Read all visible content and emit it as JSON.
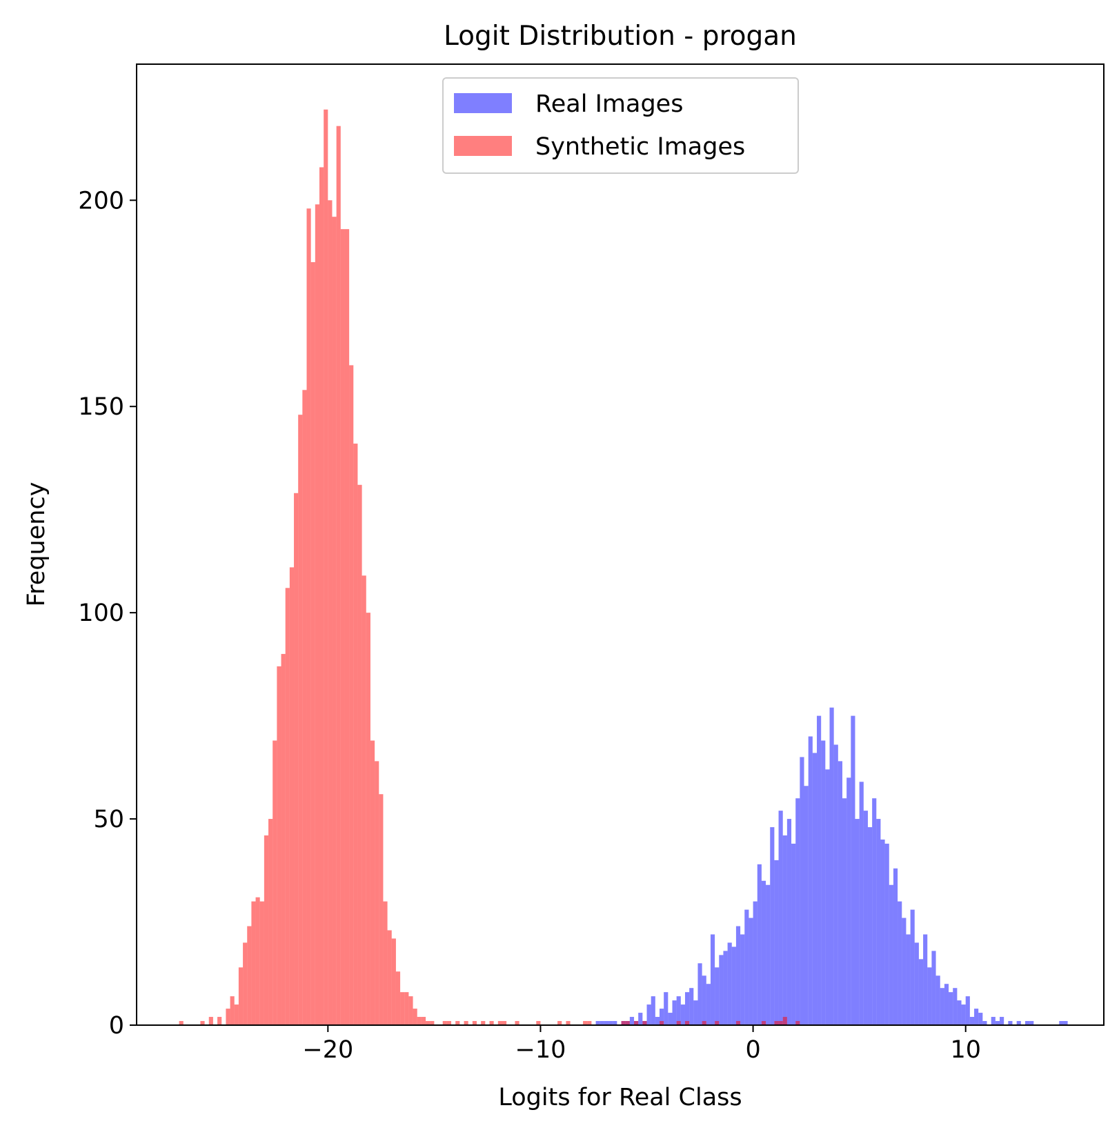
{
  "chart_data": {
    "type": "bar",
    "title": "Logit Distribution - progan",
    "xlabel": "Logits for Real Class",
    "ylabel": "Frequency",
    "xlim": [
      -29,
      16.5
    ],
    "ylim": [
      0,
      233
    ],
    "xticks": [
      -20,
      -10,
      0,
      10
    ],
    "xtick_labels": [
      "−20",
      "−10",
      "0",
      "10"
    ],
    "yticks": [
      0,
      50,
      100,
      150,
      200
    ],
    "ytick_labels": [
      "0",
      "50",
      "100",
      "150",
      "200"
    ],
    "grid": false,
    "legend_position": "upper center",
    "bin_width": 0.2,
    "series": [
      {
        "name": "Real Images",
        "color": "#0000ff",
        "alpha": 0.5,
        "bins": [
          [
            -7.4,
            1
          ],
          [
            -7.2,
            1
          ],
          [
            -7.0,
            1
          ],
          [
            -6.8,
            1
          ],
          [
            -6.6,
            1
          ],
          [
            -6.2,
            1
          ],
          [
            -6.0,
            1
          ],
          [
            -5.8,
            2
          ],
          [
            -5.6,
            1
          ],
          [
            -5.4,
            3
          ],
          [
            -5.2,
            1
          ],
          [
            -5.0,
            5
          ],
          [
            -4.8,
            7
          ],
          [
            -4.6,
            2
          ],
          [
            -4.4,
            4
          ],
          [
            -4.2,
            8
          ],
          [
            -4.0,
            3
          ],
          [
            -3.8,
            6
          ],
          [
            -3.6,
            7
          ],
          [
            -3.4,
            5
          ],
          [
            -3.2,
            8
          ],
          [
            -3.0,
            9
          ],
          [
            -2.8,
            6
          ],
          [
            -2.6,
            15
          ],
          [
            -2.4,
            12
          ],
          [
            -2.2,
            10
          ],
          [
            -2.0,
            22
          ],
          [
            -1.8,
            14
          ],
          [
            -1.6,
            17
          ],
          [
            -1.4,
            18
          ],
          [
            -1.2,
            20
          ],
          [
            -1.0,
            19
          ],
          [
            -0.8,
            24
          ],
          [
            -0.6,
            22
          ],
          [
            -0.4,
            28
          ],
          [
            -0.2,
            26
          ],
          [
            0.0,
            30
          ],
          [
            0.2,
            39
          ],
          [
            0.4,
            35
          ],
          [
            0.6,
            34
          ],
          [
            0.8,
            48
          ],
          [
            1.0,
            40
          ],
          [
            1.2,
            52
          ],
          [
            1.4,
            46
          ],
          [
            1.6,
            50
          ],
          [
            1.8,
            44
          ],
          [
            2.0,
            55
          ],
          [
            2.2,
            65
          ],
          [
            2.4,
            58
          ],
          [
            2.6,
            70
          ],
          [
            2.8,
            66
          ],
          [
            3.0,
            75
          ],
          [
            3.2,
            69
          ],
          [
            3.4,
            62
          ],
          [
            3.6,
            77
          ],
          [
            3.8,
            68
          ],
          [
            4.0,
            64
          ],
          [
            4.2,
            55
          ],
          [
            4.4,
            60
          ],
          [
            4.6,
            75
          ],
          [
            4.8,
            50
          ],
          [
            5.0,
            59
          ],
          [
            5.2,
            52
          ],
          [
            5.4,
            48
          ],
          [
            5.6,
            55
          ],
          [
            5.8,
            50
          ],
          [
            6.0,
            45
          ],
          [
            6.2,
            44
          ],
          [
            6.4,
            34
          ],
          [
            6.6,
            38
          ],
          [
            6.8,
            30
          ],
          [
            7.0,
            26
          ],
          [
            7.2,
            22
          ],
          [
            7.4,
            28
          ],
          [
            7.6,
            20
          ],
          [
            7.8,
            16
          ],
          [
            8.0,
            22
          ],
          [
            8.2,
            14
          ],
          [
            8.4,
            18
          ],
          [
            8.6,
            12
          ],
          [
            8.8,
            9
          ],
          [
            9.0,
            10
          ],
          [
            9.2,
            8
          ],
          [
            9.4,
            9
          ],
          [
            9.6,
            6
          ],
          [
            9.8,
            5
          ],
          [
            10.0,
            7
          ],
          [
            10.2,
            2
          ],
          [
            10.4,
            4
          ],
          [
            10.6,
            3
          ],
          [
            10.8,
            1
          ],
          [
            11.2,
            2
          ],
          [
            11.4,
            1
          ],
          [
            11.6,
            2
          ],
          [
            12.0,
            1
          ],
          [
            12.4,
            1
          ],
          [
            12.8,
            1
          ],
          [
            13.0,
            1
          ],
          [
            14.4,
            1
          ],
          [
            14.6,
            1
          ]
        ]
      },
      {
        "name": "Synthetic Images",
        "color": "#ff0000",
        "alpha": 0.5,
        "bins": [
          [
            -27.0,
            1
          ],
          [
            -26.0,
            1
          ],
          [
            -25.6,
            2
          ],
          [
            -25.2,
            2
          ],
          [
            -24.8,
            4
          ],
          [
            -24.6,
            7
          ],
          [
            -24.4,
            5
          ],
          [
            -24.2,
            14
          ],
          [
            -24.0,
            20
          ],
          [
            -23.8,
            24
          ],
          [
            -23.6,
            30
          ],
          [
            -23.4,
            31
          ],
          [
            -23.2,
            30
          ],
          [
            -23.0,
            46
          ],
          [
            -22.8,
            50
          ],
          [
            -22.6,
            69
          ],
          [
            -22.4,
            87
          ],
          [
            -22.2,
            90
          ],
          [
            -22.0,
            106
          ],
          [
            -21.8,
            111
          ],
          [
            -21.6,
            129
          ],
          [
            -21.4,
            148
          ],
          [
            -21.2,
            154
          ],
          [
            -21.0,
            198
          ],
          [
            -20.8,
            185
          ],
          [
            -20.6,
            199
          ],
          [
            -20.4,
            208
          ],
          [
            -20.2,
            222
          ],
          [
            -20.0,
            200
          ],
          [
            -19.8,
            196
          ],
          [
            -19.6,
            218
          ],
          [
            -19.4,
            193
          ],
          [
            -19.2,
            193
          ],
          [
            -19.0,
            160
          ],
          [
            -18.8,
            141
          ],
          [
            -18.6,
            131
          ],
          [
            -18.4,
            109
          ],
          [
            -18.2,
            100
          ],
          [
            -18.0,
            69
          ],
          [
            -17.8,
            64
          ],
          [
            -17.6,
            56
          ],
          [
            -17.4,
            30
          ],
          [
            -17.2,
            23
          ],
          [
            -17.0,
            21
          ],
          [
            -16.8,
            13
          ],
          [
            -16.6,
            8
          ],
          [
            -16.4,
            8
          ],
          [
            -16.2,
            7
          ],
          [
            -16.0,
            4
          ],
          [
            -15.8,
            2
          ],
          [
            -15.6,
            2
          ],
          [
            -15.4,
            1
          ],
          [
            -15.2,
            1
          ],
          [
            -14.6,
            1
          ],
          [
            -14.4,
            1
          ],
          [
            -14.0,
            1
          ],
          [
            -13.6,
            1
          ],
          [
            -13.2,
            1
          ],
          [
            -12.8,
            1
          ],
          [
            -12.4,
            1
          ],
          [
            -12.0,
            1
          ],
          [
            -11.8,
            1
          ],
          [
            -11.2,
            1
          ],
          [
            -10.2,
            1
          ],
          [
            -9.2,
            1
          ],
          [
            -8.8,
            1
          ],
          [
            -8.0,
            1
          ],
          [
            -7.8,
            1
          ],
          [
            -6.2,
            1
          ],
          [
            -6.0,
            1
          ],
          [
            -5.6,
            1
          ],
          [
            -5.2,
            1
          ],
          [
            -4.4,
            1
          ],
          [
            -3.6,
            1
          ],
          [
            -3.2,
            1
          ],
          [
            -2.4,
            1
          ],
          [
            -1.8,
            1
          ],
          [
            -0.8,
            1
          ],
          [
            0.4,
            1
          ],
          [
            1.0,
            1
          ],
          [
            1.2,
            1
          ],
          [
            1.4,
            2
          ],
          [
            2.0,
            1
          ]
        ]
      }
    ]
  }
}
